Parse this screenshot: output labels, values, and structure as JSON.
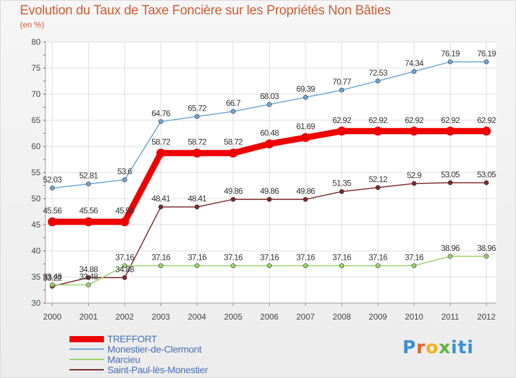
{
  "chart_data": {
    "type": "line",
    "title": "Evolution du Taux de Taxe Foncière sur les Propriétés Non Bâties",
    "subtitle": "(en %)",
    "x": [
      "2000",
      "2001",
      "2002",
      "2003",
      "2004",
      "2005",
      "2006",
      "2007",
      "2008",
      "2009",
      "2010",
      "2011",
      "2012"
    ],
    "ylim": [
      30,
      80
    ],
    "yticks": [
      "30",
      "35",
      "40",
      "45",
      "50",
      "55",
      "60",
      "65",
      "70",
      "75",
      "80"
    ],
    "grid": true,
    "legend_position": "bottom-left",
    "series": [
      {
        "name": "TREFFORT",
        "color": "#ee0000",
        "values": [
          45.56,
          45.56,
          45.56,
          58.72,
          58.72,
          58.72,
          60.48,
          61.69,
          62.92,
          62.92,
          62.92,
          62.92,
          62.92
        ],
        "labels": [
          "45.56",
          "45.56",
          "45.56",
          "58.72",
          "58.72",
          "58.72",
          "60.48",
          "61.69",
          "62.92",
          "62.92",
          "62.92",
          "62.92",
          "62.92"
        ]
      },
      {
        "name": "Monestier-de-Clermont",
        "color": "#6ea6d8",
        "values": [
          52.03,
          52.81,
          53.6,
          64.76,
          65.72,
          66.7,
          68.03,
          69.39,
          70.77,
          72.53,
          74.34,
          76.19,
          76.19
        ],
        "labels": [
          "52.03",
          "52.81",
          "53.6",
          "64.76",
          "65.72",
          "66.7",
          "68.03",
          "69.39",
          "70.77",
          "72.53",
          "74.34",
          "76.19",
          "76.19"
        ]
      },
      {
        "name": "Marcieu",
        "color": "#99d36a",
        "values": [
          33.48,
          33.48,
          37.16,
          37.16,
          37.16,
          37.16,
          37.16,
          37.16,
          37.16,
          37.16,
          37.16,
          38.96,
          38.96
        ],
        "labels": [
          "33.48",
          "33.48",
          "37.16",
          "37.16",
          "37.16",
          "37.16",
          "37.16",
          "37.16",
          "37.16",
          "37.16",
          "37.16",
          "38.96",
          "38.96"
        ]
      },
      {
        "name": "Saint-Paul-lès-Monestier",
        "color": "#7a2a2a",
        "values": [
          33.22,
          34.88,
          34.88,
          48.41,
          48.41,
          49.86,
          49.86,
          49.86,
          51.35,
          52.12,
          52.9,
          53.05,
          53.05
        ],
        "labels": [
          "33.22",
          "34.88",
          "34.88",
          "48.41",
          "48.41",
          "49.86",
          "49.86",
          "49.86",
          "51.35",
          "52.12",
          "52.9",
          "53.05",
          "53.05"
        ]
      }
    ]
  },
  "brand": {
    "letters": [
      "P",
      "r",
      "o",
      "x",
      "iti"
    ]
  }
}
